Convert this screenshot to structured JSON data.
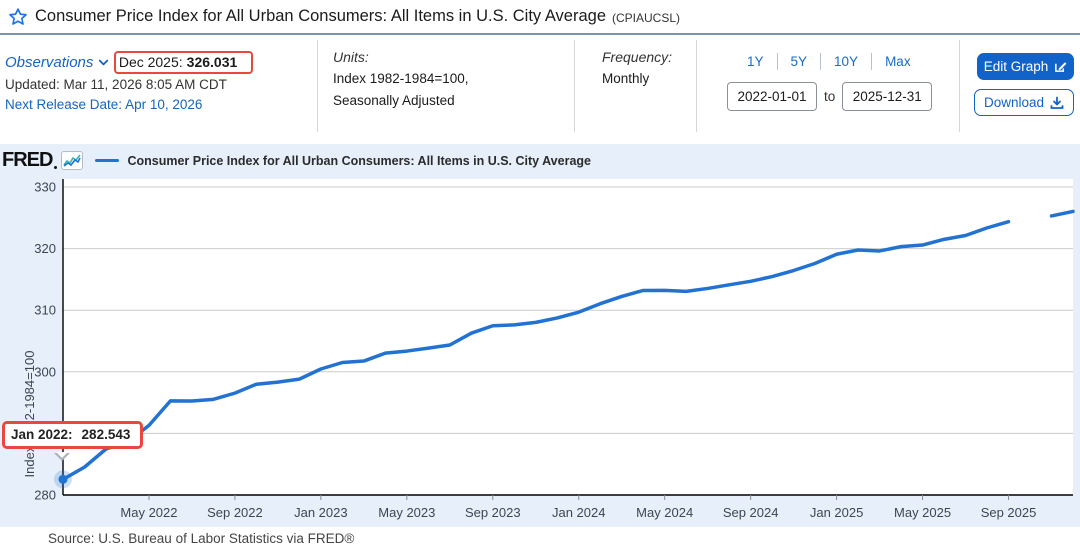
{
  "header": {
    "title": "Consumer Price Index for All Urban Consumers: All Items in U.S. City Average",
    "series_id": "(CPIAUCSL)"
  },
  "info": {
    "observations_label": "Observations",
    "current_obs": {
      "date": "Dec 2025:",
      "value": "326.031"
    },
    "updated": "Updated: Mar 11, 2026 8:05 AM CDT",
    "next_release": "Next Release Date: Apr 10, 2026",
    "units_label": "Units:",
    "units_line1": "Index 1982-1984=100,",
    "units_line2": "Seasonally Adjusted",
    "frequency_label": "Frequency:",
    "frequency_value": "Monthly",
    "ranges": [
      "1Y",
      "5Y",
      "10Y",
      "Max"
    ],
    "date_start": "2022-01-01",
    "date_to_label": "to",
    "date_end": "2025-12-31",
    "edit_graph_label": "Edit Graph",
    "download_label": "Download"
  },
  "chart": {
    "brand": "FRED",
    "legend_label": "Consumer Price Index for All Urban Consumers: All Items in U.S. City Average",
    "y_axis_title": "Index 1982-1984=100",
    "tooltip": {
      "date": "Jan 2022:",
      "value": "282.543"
    }
  },
  "chart_data": {
    "type": "line",
    "title": "Consumer Price Index for All Urban Consumers: All Items in U.S. City Average",
    "ylabel": "Index 1982-1984=100",
    "ylim": [
      280,
      330
    ],
    "y_ticks": [
      280,
      290,
      300,
      310,
      320,
      330
    ],
    "grid": true,
    "legend_position": "top-left",
    "line_color": "#2272d2",
    "x": [
      "2022-01",
      "2022-02",
      "2022-03",
      "2022-04",
      "2022-05",
      "2022-06",
      "2022-07",
      "2022-08",
      "2022-09",
      "2022-10",
      "2022-11",
      "2022-12",
      "2023-01",
      "2023-02",
      "2023-03",
      "2023-04",
      "2023-05",
      "2023-06",
      "2023-07",
      "2023-08",
      "2023-09",
      "2023-10",
      "2023-11",
      "2023-12",
      "2024-01",
      "2024-02",
      "2024-03",
      "2024-04",
      "2024-05",
      "2024-06",
      "2024-07",
      "2024-08",
      "2024-09",
      "2024-10",
      "2024-11",
      "2024-12",
      "2025-01",
      "2025-02",
      "2025-03",
      "2025-04",
      "2025-05",
      "2025-06",
      "2025-07",
      "2025-08",
      "2025-09",
      "2025-10",
      "2025-11",
      "2025-12"
    ],
    "values": [
      282.543,
      284.525,
      287.467,
      288.582,
      291.299,
      295.276,
      295.255,
      295.529,
      296.539,
      297.987,
      298.33,
      298.812,
      300.456,
      301.509,
      301.744,
      303.032,
      303.365,
      303.841,
      304.348,
      306.269,
      307.481,
      307.619,
      308.024,
      308.742,
      309.685,
      311.054,
      312.23,
      313.207,
      313.225,
      313.049,
      313.534,
      314.121,
      314.686,
      315.454,
      316.441,
      317.603,
      319.086,
      319.775,
      319.615,
      320.321,
      320.58,
      321.5,
      322.132,
      323.364,
      324.368,
      null,
      325.3,
      326.031
    ],
    "x_tick_labels": [
      "May 2022",
      "Sep 2022",
      "Jan 2023",
      "May 2023",
      "Sep 2023",
      "Jan 2024",
      "May 2024",
      "Sep 2024",
      "Jan 2025",
      "May 2025",
      "Sep 2025"
    ],
    "x_tick_month_indices": [
      4,
      8,
      12,
      16,
      20,
      24,
      28,
      32,
      36,
      40,
      44
    ],
    "highlight_point": {
      "x_index": 0,
      "value": 282.543
    }
  },
  "source": "Source: U.S. Bureau of Labor Statistics via FRED®",
  "colors": {
    "accent_blue": "#1565c0",
    "button_blue": "#1163c9",
    "highlight_red": "#e8483f",
    "chart_bg": "#e7f0fa",
    "line_blue": "#2272d2"
  }
}
